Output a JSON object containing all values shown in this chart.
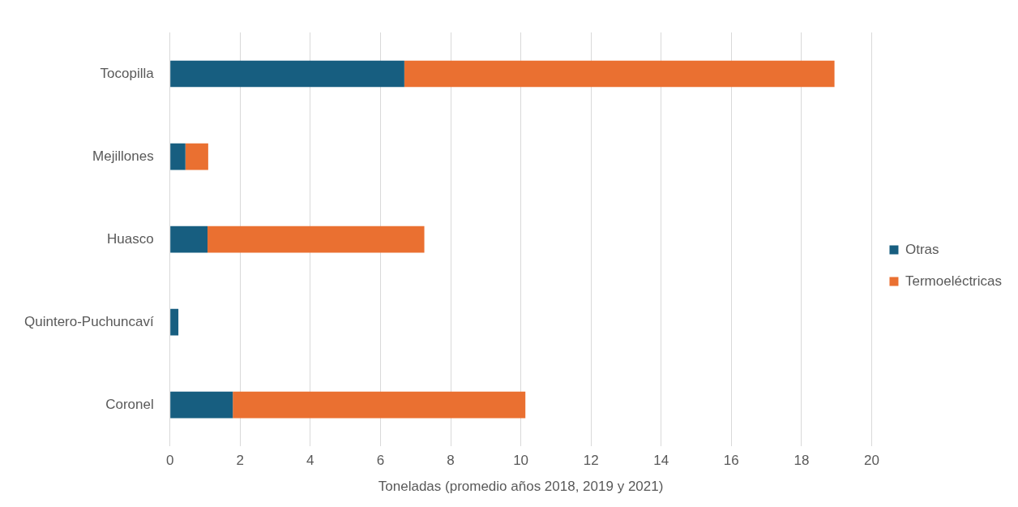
{
  "chart_data": {
    "type": "bar",
    "orientation": "horizontal",
    "stacked": true,
    "categories": [
      "Tocopilla",
      "Mejillones",
      "Huasco",
      "Quintero-Puchuncaví",
      "Coronel"
    ],
    "series": [
      {
        "name": "Otras",
        "color": "#175e80",
        "values": [
          6.68,
          0.44,
          1.07,
          0.24,
          1.79
        ]
      },
      {
        "name": "Termoeléctricas",
        "color": "#ea7031",
        "values": [
          12.26,
          0.65,
          6.18,
          0,
          8.34
        ]
      }
    ],
    "xlabel": "Toneladas (promedio años 2018, 2019 y 2021)",
    "xlim": [
      0,
      20
    ],
    "xticks": [
      0,
      2,
      4,
      6,
      8,
      10,
      12,
      14,
      16,
      18,
      20
    ],
    "grid": "x",
    "legend": "right"
  }
}
